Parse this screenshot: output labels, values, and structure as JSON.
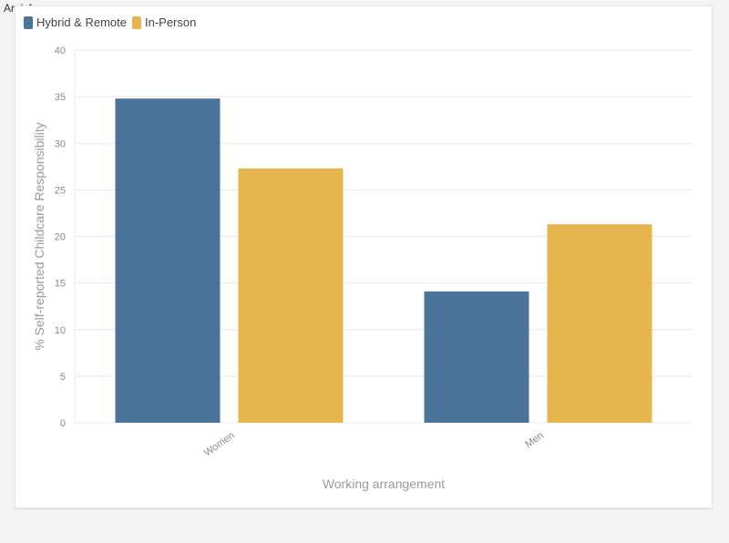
{
  "watermark": "ArabAq.com",
  "colors": {
    "hybrid": "#4A7599",
    "inperson": "#E5B54E",
    "grid": "#e9e9e9"
  },
  "chart_data": {
    "type": "bar",
    "categories": [
      "Women",
      "Men"
    ],
    "series": [
      {
        "name": "Hybrid & Remote",
        "values": [
          34.8,
          14.1
        ]
      },
      {
        "name": "In-Person",
        "values": [
          27.3,
          21.3
        ]
      }
    ],
    "title": "",
    "xlabel": "Working arrangement",
    "ylabel": "% Self-reported Childcare Responsibility",
    "ylim": [
      0,
      40
    ],
    "yticks": [
      0,
      5,
      10,
      15,
      20,
      25,
      30,
      35,
      40
    ],
    "grid": true,
    "legend": "top-left"
  }
}
